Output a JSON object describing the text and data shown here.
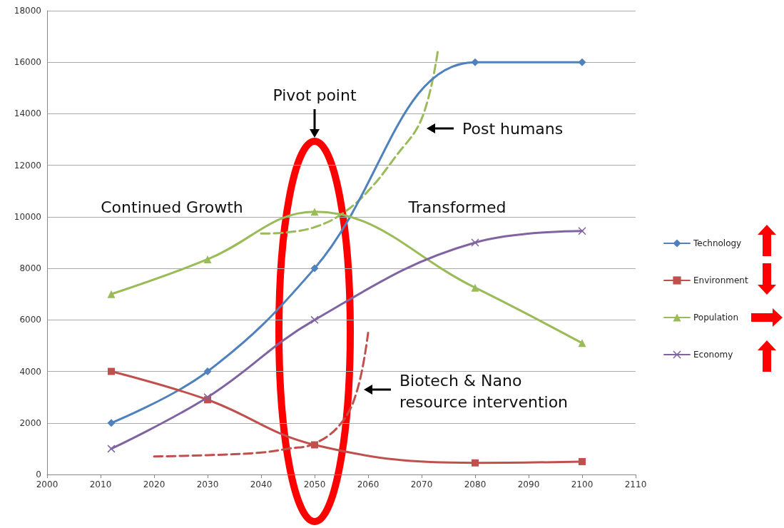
{
  "chart_data": {
    "type": "line",
    "xlim": [
      2000,
      2110
    ],
    "xticks": [
      2000,
      2010,
      2020,
      2030,
      2040,
      2050,
      2060,
      2070,
      2080,
      2090,
      2100,
      2110
    ],
    "ylim": [
      0,
      18000
    ],
    "yticks": [
      0,
      2000,
      4000,
      6000,
      8000,
      10000,
      12000,
      14000,
      16000,
      18000
    ],
    "grid": "y",
    "legend": "right",
    "series": [
      {
        "name": "Technology",
        "color": "#4f81bd",
        "marker": "diamond",
        "x": [
          2012,
          2030,
          2050,
          2080,
          2100
        ],
        "values": [
          2000,
          4000,
          8000,
          16000,
          16000
        ]
      },
      {
        "name": "Environment",
        "color": "#c0504d",
        "marker": "square",
        "x": [
          2012,
          2030,
          2050,
          2080,
          2100
        ],
        "values": [
          4000,
          2900,
          1150,
          450,
          500
        ]
      },
      {
        "name": "Population",
        "color": "#9bbb59",
        "marker": "triangle",
        "x": [
          2012,
          2030,
          2050,
          2080,
          2100
        ],
        "values": [
          7000,
          8350,
          10200,
          7250,
          5100
        ]
      },
      {
        "name": "Economy",
        "color": "#8064a2",
        "marker": "cross",
        "x": [
          2012,
          2030,
          2050,
          2080,
          2100
        ],
        "values": [
          1000,
          3000,
          6000,
          9000,
          9450
        ]
      },
      {
        "color": "#9bbb59",
        "marker": "none",
        "line_style": "dashed",
        "x": [
          2040,
          2045,
          2050,
          2055,
          2060,
          2065,
          2070,
          2073
        ],
        "values": [
          9350,
          9400,
          9600,
          10100,
          11000,
          12300,
          13800,
          16400
        ]
      },
      {
        "color": "#c0504d",
        "marker": "none",
        "line_style": "dashed",
        "x": [
          2020,
          2030,
          2040,
          2045,
          2050,
          2055,
          2058,
          2060
        ],
        "values": [
          700,
          750,
          850,
          1000,
          1200,
          2000,
          3300,
          5500
        ]
      }
    ],
    "annotations": [
      "Pivot point",
      "Post humans",
      "Biotech & Nano\nresource intervention",
      "Continued Growth",
      "Transformed"
    ]
  }
}
